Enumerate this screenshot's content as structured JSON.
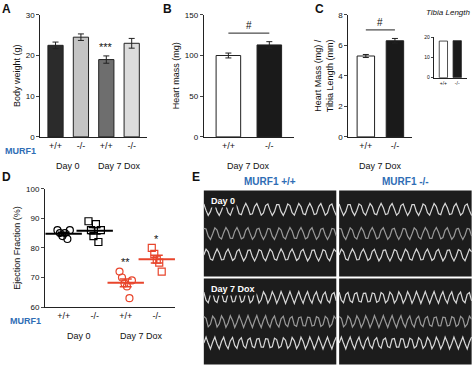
{
  "chart_data": [
    {
      "label": "A",
      "type": "bar",
      "categories": [
        "+/+",
        "-/-",
        "+/+",
        "-/-"
      ],
      "values": [
        22.5,
        24.5,
        19,
        23
      ],
      "errors": [
        0.8,
        0.8,
        0.9,
        1.2
      ],
      "colors": [
        "#2b2b2b",
        "#c4c4c4",
        "#6e6e6e",
        "#dcdcdc"
      ],
      "y_label": "Body weight (g)",
      "ylim": [
        0,
        30
      ],
      "yticks": [
        0,
        10,
        20,
        30
      ],
      "row_label": "MURF1",
      "groups": [
        {
          "label": "Day 0",
          "count": 2
        },
        {
          "label": "Day 7 Dox",
          "count": 2
        }
      ],
      "annotations": [
        {
          "text": "***",
          "category": 2
        }
      ]
    },
    {
      "label": "B",
      "type": "bar",
      "categories": [
        "+/+",
        "-/-"
      ],
      "values": [
        100,
        113
      ],
      "errors": [
        3,
        4
      ],
      "colors": [
        "#ffffff",
        "#1a1a1a"
      ],
      "y_label": "Heart mass (mg)",
      "ylim": [
        0,
        150
      ],
      "yticks": [
        0,
        50,
        100,
        150
      ],
      "groups": [
        {
          "label": "Day 7 Dox",
          "count": 2
        }
      ],
      "annotations": [
        {
          "text": "#",
          "categories": [
            0,
            1
          ]
        }
      ]
    },
    {
      "label": "C",
      "type": "bar",
      "categories": [
        "+/+",
        "-/-"
      ],
      "values": [
        5.3,
        6.3
      ],
      "errors": [
        0.1,
        0.15
      ],
      "colors": [
        "#ffffff",
        "#1a1a1a"
      ],
      "y_label": "Heart Mass (mg) / Tibia Length (mm)",
      "ylim": [
        0,
        8
      ],
      "yticks": [
        0,
        2,
        4,
        6,
        8
      ],
      "groups": [
        {
          "label": "Day 7 Dox",
          "count": 2
        }
      ],
      "annotations": [
        {
          "text": "#",
          "categories": [
            0,
            1
          ]
        }
      ],
      "inset": {
        "title": "Tibia Length",
        "type": "bar",
        "categories": [
          "+/+",
          "-/-"
        ],
        "values": [
          18,
          18.2
        ],
        "colors": [
          "#ffffff",
          "#1a1a1a"
        ],
        "ylim": [
          0,
          20
        ],
        "yticks": [
          0,
          10,
          20
        ]
      }
    },
    {
      "label": "D",
      "type": "scatter",
      "categories": [
        "+/+",
        "-/-",
        "+/+",
        "-/-"
      ],
      "points": [
        [
          86,
          85,
          84,
          85,
          83,
          86
        ],
        [
          89,
          86,
          84,
          88,
          82,
          86
        ],
        [
          72,
          70,
          68,
          67,
          63,
          69
        ],
        [
          80,
          78,
          76,
          75,
          72
        ]
      ],
      "means": [
        84.8,
        85.8,
        68.2,
        76.2
      ],
      "errors": [
        0.5,
        1.1,
        1.3,
        1.3
      ],
      "colors": [
        "#000000",
        "#000000",
        "#e8452c",
        "#e8452c"
      ],
      "markers": [
        "circle",
        "square",
        "circle",
        "square"
      ],
      "y_label": "Ejection Fraction (%)",
      "ylim": [
        60,
        100
      ],
      "yticks": [
        60,
        70,
        80,
        90,
        100
      ],
      "row_label": "MURF1",
      "groups": [
        {
          "label": "Day 0",
          "count": 2
        },
        {
          "label": "Day 7 Dox",
          "count": 2
        }
      ],
      "annotations": [
        {
          "text": "**",
          "category": 2
        },
        {
          "text": "*",
          "category": 3
        }
      ]
    },
    {
      "label": "E",
      "type": "image",
      "columns": [
        "MURF1 +/+",
        "MURF1 -/-"
      ],
      "rows": [
        "Day 0",
        "Day 7 Dox"
      ]
    }
  ]
}
